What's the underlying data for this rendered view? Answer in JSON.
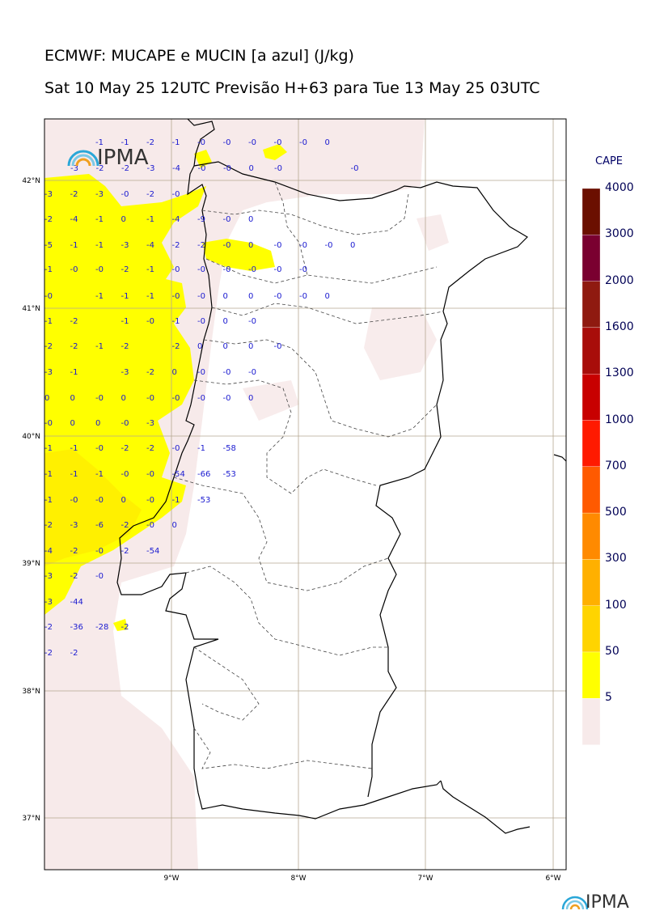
{
  "title_line1": "ECMWF: MUCAPE e MUCIN [a azul] (J/kg)",
  "title_line2": "Sat 10 May 25 12UTC Previsão H+63 para Tue 13 May 25 03UTC",
  "logo_text": "IPMA",
  "colorbar": {
    "title": "CAPE",
    "levels": [
      "4000",
      "3000",
      "2000",
      "1600",
      "1300",
      "1000",
      "700",
      "500",
      "300",
      "100",
      "50",
      "5"
    ],
    "colors": [
      "#6b0f00",
      "#7a0030",
      "#8f1a10",
      "#a80d0a",
      "#c80000",
      "#ff1a00",
      "#ff5a00",
      "#ff8a00",
      "#ffb000",
      "#ffd400",
      "#ffff00",
      "#f7eaea"
    ]
  },
  "lat_labels": [
    "42°N",
    "41°N",
    "40°N",
    "39°N",
    "38°N",
    "37°N"
  ],
  "lon_labels": [
    "9°W",
    "8°W",
    "7°W",
    "6°W"
  ],
  "cin_rows": [
    [
      "-1",
      "-1",
      "-2",
      "-1",
      "-0",
      "-0",
      "-0",
      "-0",
      "-0",
      "0"
    ],
    [
      "-3",
      "-2",
      "-2",
      "-3",
      "-4",
      "-0",
      "-0",
      "0",
      "-0",
      "-0"
    ],
    [
      "-3",
      "-2",
      "-3",
      "-0",
      "-2",
      "-0"
    ],
    [
      "-2",
      "-4",
      "-1",
      "0",
      "-1",
      "-4",
      "-9",
      "-0",
      "0"
    ],
    [
      "-5",
      "-1",
      "-1",
      "-3",
      "-4",
      "-2",
      "-2",
      "-0",
      "0",
      "-0",
      "-0",
      "-0",
      "0"
    ],
    [
      "-1",
      "-0",
      "-0",
      "-2",
      "-1",
      "-0",
      "-0",
      "-0",
      "-0",
      "-0",
      "-0"
    ],
    [
      "-0",
      "-1",
      "-1",
      "-1",
      "-0",
      "-0",
      "0",
      "0",
      "-0",
      "-0",
      "0"
    ],
    [
      "-1",
      "-2",
      "-1",
      "-0",
      "-1",
      "-0",
      "0",
      "-0"
    ],
    [
      "-2",
      "-2",
      "-1",
      "-2",
      "-2",
      "0",
      "0",
      "0",
      "-0"
    ],
    [
      "-3",
      "-1",
      "-3",
      "-2",
      "0",
      "-0",
      "-0",
      "-0"
    ],
    [
      "0",
      "0",
      "-0",
      "0",
      "-0",
      "-0",
      "-0",
      "-0",
      "0"
    ],
    [
      "-0",
      "0",
      "0",
      "-0",
      "-3"
    ],
    [
      "-1",
      "-1",
      "-0",
      "-2",
      "-2",
      "-0",
      "-1",
      "-58"
    ],
    [
      "-1",
      "-1",
      "-1",
      "-0",
      "-0",
      "-54",
      "-66",
      "-53"
    ],
    [
      "-1",
      "-0",
      "-0",
      "0",
      "-0",
      "-1",
      "-53"
    ],
    [
      "-2",
      "-3",
      "-6",
      "-2",
      "-0",
      "0"
    ],
    [
      "-4",
      "-2",
      "-0",
      "-2",
      "-54"
    ],
    [
      "-3",
      "-2",
      "-0"
    ],
    [
      "-3",
      "-44"
    ],
    [
      "-2",
      "-36",
      "-28",
      "-2"
    ],
    [
      "-2",
      "-2"
    ]
  ]
}
